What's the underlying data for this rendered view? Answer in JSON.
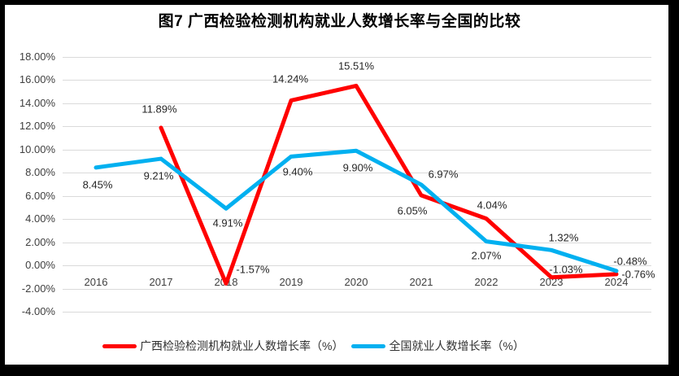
{
  "chart_data": {
    "type": "line",
    "title": "图7 广西检验检测机构就业人数增长率与全国的比较",
    "categories": [
      "2016",
      "2017",
      "2018",
      "2019",
      "2020",
      "2021",
      "2022",
      "2023",
      "2024"
    ],
    "y_ticks": [
      "18.00%",
      "16.00%",
      "14.00%",
      "12.00%",
      "10.00%",
      "8.00%",
      "6.00%",
      "4.00%",
      "2.00%",
      "0.00%",
      "-2.00%",
      "-4.00%"
    ],
    "grid": true,
    "legend_position": "bottom",
    "series": [
      {
        "name": "广西检验检测机构就业人数增长率（%）",
        "color": "#FF0000",
        "values": [
          null,
          11.89,
          -1.57,
          14.24,
          15.51,
          6.05,
          4.04,
          -1.03,
          -0.76
        ],
        "labels": [
          null,
          "11.89%",
          "-1.57%",
          "14.24%",
          "15.51%",
          "6.05%",
          "4.04%",
          "-1.03%",
          "-0.76%"
        ],
        "label_offsets": [
          [
            0,
            0
          ],
          [
            -2,
            -23
          ],
          [
            33,
            -17
          ],
          [
            -1,
            -26
          ],
          [
            0,
            -24
          ],
          [
            -11,
            19
          ],
          [
            7,
            -17
          ],
          [
            18,
            -10
          ],
          [
            27,
            0
          ]
        ]
      },
      {
        "name": "全国就业人数增长率（%）",
        "color": "#00B0F0",
        "values": [
          8.45,
          9.21,
          4.91,
          9.4,
          9.9,
          6.97,
          2.07,
          1.32,
          -0.48
        ],
        "labels": [
          "8.45%",
          "9.21%",
          "4.91%",
          "9.40%",
          "9.90%",
          "6.97%",
          "2.07%",
          "1.32%",
          "-0.48%"
        ],
        "label_offsets": [
          [
            2,
            21
          ],
          [
            -3,
            21
          ],
          [
            2,
            18
          ],
          [
            8,
            19
          ],
          [
            2,
            21
          ],
          [
            27,
            -13
          ],
          [
            0,
            17
          ],
          [
            15,
            -15
          ],
          [
            17,
            -12
          ]
        ]
      }
    ],
    "layout": {
      "ylim": [
        -4,
        18
      ],
      "x_start": 118,
      "x_step": 80,
      "y_top": 70,
      "y_bottom": 383,
      "grid_left": 77,
      "grid_right": 801,
      "x_label_top": 339,
      "line_width": 5
    },
    "colors": {
      "grid": "#dadada",
      "tick_text": "#404040",
      "data_label_text": "#262626",
      "frame": "#000000"
    }
  }
}
